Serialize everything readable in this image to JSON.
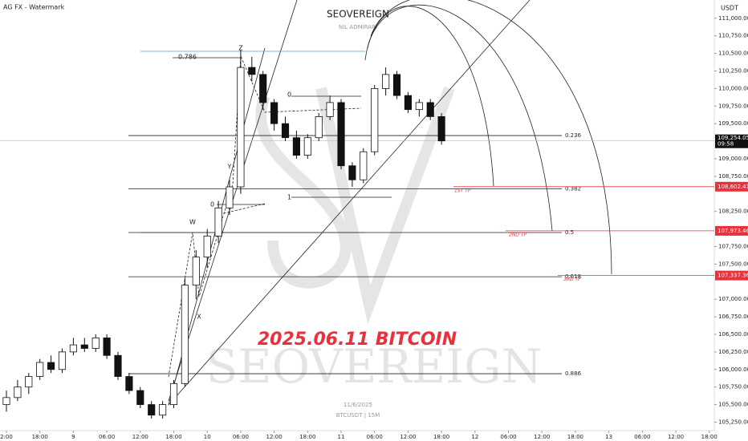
{
  "chart_data": {
    "type": "candlestick",
    "title": "2025.06.11 BITCOIN",
    "header": "AG FX - Watermark",
    "currency": "USDT",
    "watermark": {
      "brand": "SEOVEREIGN",
      "motto": "NIL ADMIRARI",
      "big": "SEOVEREIGN",
      "date": "11/6/2025",
      "symbol": "BTCUSDT | 15M"
    },
    "x": [
      0,
      2,
      4,
      6,
      8,
      10,
      12,
      14,
      16,
      18,
      20,
      22,
      24,
      26,
      28,
      30,
      32,
      34,
      36,
      38,
      40,
      42,
      44,
      46,
      48,
      50,
      52,
      54,
      56,
      58,
      60,
      62,
      64,
      66,
      68,
      70,
      72,
      74,
      76,
      78
    ],
    "open": [
      105500,
      105600,
      105750,
      105900,
      106100,
      106000,
      106250,
      106350,
      106300,
      106450,
      106200,
      105900,
      105700,
      105500,
      105350,
      105500,
      105800,
      107200,
      107600,
      107900,
      108300,
      108600,
      110300,
      110200,
      109800,
      109500,
      109300,
      109050,
      109300,
      109600,
      109800,
      108900,
      108700,
      109100,
      110000,
      110200,
      109900,
      109700,
      109800,
      109600
    ],
    "high": [
      105700,
      105850,
      105950,
      106150,
      106200,
      106300,
      106450,
      106450,
      106500,
      106500,
      106250,
      105950,
      105750,
      105550,
      105550,
      105850,
      107300,
      107700,
      108000,
      108400,
      108700,
      110550,
      110450,
      110250,
      109850,
      109600,
      109400,
      109350,
      109650,
      109900,
      109850,
      108950,
      109150,
      110050,
      110300,
      110250,
      109950,
      109850,
      109850,
      109650
    ],
    "low": [
      105400,
      105550,
      105650,
      105850,
      105950,
      105950,
      106200,
      106250,
      106250,
      106150,
      105850,
      105650,
      105450,
      105300,
      105300,
      105450,
      105750,
      107000,
      107450,
      107800,
      108200,
      108500,
      110100,
      109700,
      109400,
      109250,
      109000,
      109000,
      109250,
      109550,
      108850,
      108600,
      108650,
      109050,
      109900,
      109850,
      109650,
      109600,
      109550,
      109200
    ],
    "close": [
      105600,
      105750,
      105900,
      106100,
      106000,
      106250,
      106350,
      106300,
      106450,
      106200,
      105900,
      105700,
      105500,
      105350,
      105500,
      105800,
      107200,
      107600,
      107900,
      108300,
      108600,
      110300,
      110200,
      109800,
      109500,
      109300,
      109050,
      109300,
      109600,
      109800,
      108900,
      108700,
      109100,
      110000,
      110200,
      109900,
      109700,
      109800,
      109600,
      109254.05
    ],
    "xlim": [
      -1.15,
      126.9
    ],
    "xticks": [
      {
        "value": 0,
        "label": "2:00"
      },
      {
        "value": 6,
        "label": "18:00"
      },
      {
        "value": 12,
        "label": "9"
      },
      {
        "value": 18,
        "label": "06:00"
      },
      {
        "value": 24,
        "label": "12:00"
      },
      {
        "value": 30,
        "label": "18:00"
      },
      {
        "value": 36,
        "label": "10"
      },
      {
        "value": 42,
        "label": "06:00"
      },
      {
        "value": 48,
        "label": "12:00"
      },
      {
        "value": 54,
        "label": "18:00"
      },
      {
        "value": 60,
        "label": "11"
      },
      {
        "value": 66,
        "label": "06:00"
      },
      {
        "value": 72,
        "label": "12:00"
      },
      {
        "value": 78,
        "label": "18:00"
      },
      {
        "value": 84,
        "label": "12"
      },
      {
        "value": 90,
        "label": "06:00"
      },
      {
        "value": 96,
        "label": "12:00"
      },
      {
        "value": 102,
        "label": "18:00"
      },
      {
        "value": 108,
        "label": "13"
      },
      {
        "value": 114,
        "label": "06:00"
      },
      {
        "value": 120,
        "label": "12:00"
      },
      {
        "value": 126,
        "label": "18:00"
      }
    ],
    "ylim": [
      105130,
      111260
    ],
    "yticks": [
      {
        "value": 111000,
        "label": "111,000.00"
      },
      {
        "value": 110750,
        "label": "110,750.00"
      },
      {
        "value": 110500,
        "label": "110,500.00"
      },
      {
        "value": 110250,
        "label": "110,250.00"
      },
      {
        "value": 110000,
        "label": "110,000.00"
      },
      {
        "value": 109750,
        "label": "109,750.00"
      },
      {
        "value": 109500,
        "label": "109,500.00"
      },
      {
        "value": 109000,
        "label": "109,000.00"
      },
      {
        "value": 108750,
        "label": "108,750.00"
      },
      {
        "value": 108250,
        "label": "108,250.00"
      },
      {
        "value": 107750,
        "label": "107,750.00"
      },
      {
        "value": 107500,
        "label": "107,500.00"
      },
      {
        "value": 107000,
        "label": "107,000.00"
      },
      {
        "value": 106750,
        "label": "106,750.00"
      },
      {
        "value": 106500,
        "label": "106,500.00"
      },
      {
        "value": 106250,
        "label": "106,250.00"
      },
      {
        "value": 106000,
        "label": "106,000.00"
      },
      {
        "value": 105750,
        "label": "105,750.00"
      },
      {
        "value": 105500,
        "label": "105,500.00"
      },
      {
        "value": 105250,
        "label": "105,250.00"
      }
    ],
    "fib_levels": [
      {
        "value": 109330,
        "label": "0.236"
      },
      {
        "value": 108570,
        "label": "0.382"
      },
      {
        "value": 107950,
        "label": "0.5"
      },
      {
        "value": 107320,
        "label": "0.618"
      },
      {
        "value": 105940,
        "label": "0.886"
      }
    ],
    "targets": [
      {
        "value": 108602.41,
        "label": "108,602.41",
        "name": "1ST TP"
      },
      {
        "value": 107973.46,
        "label": "107,973.46",
        "name": "2ND TP"
      },
      {
        "value": 107337.36,
        "label": "107,337.36",
        "name": "3RD TP"
      }
    ],
    "current_price": {
      "value": 109254.05,
      "label": "109,254.05",
      "countdown": "09:58"
    },
    "wave_labels": [
      "Z",
      "Y",
      "W",
      "X",
      "0.786",
      "0",
      "0",
      "1"
    ],
    "up_color": "#ffffff",
    "down_color": "#111111",
    "target_color": "#e8313b"
  }
}
